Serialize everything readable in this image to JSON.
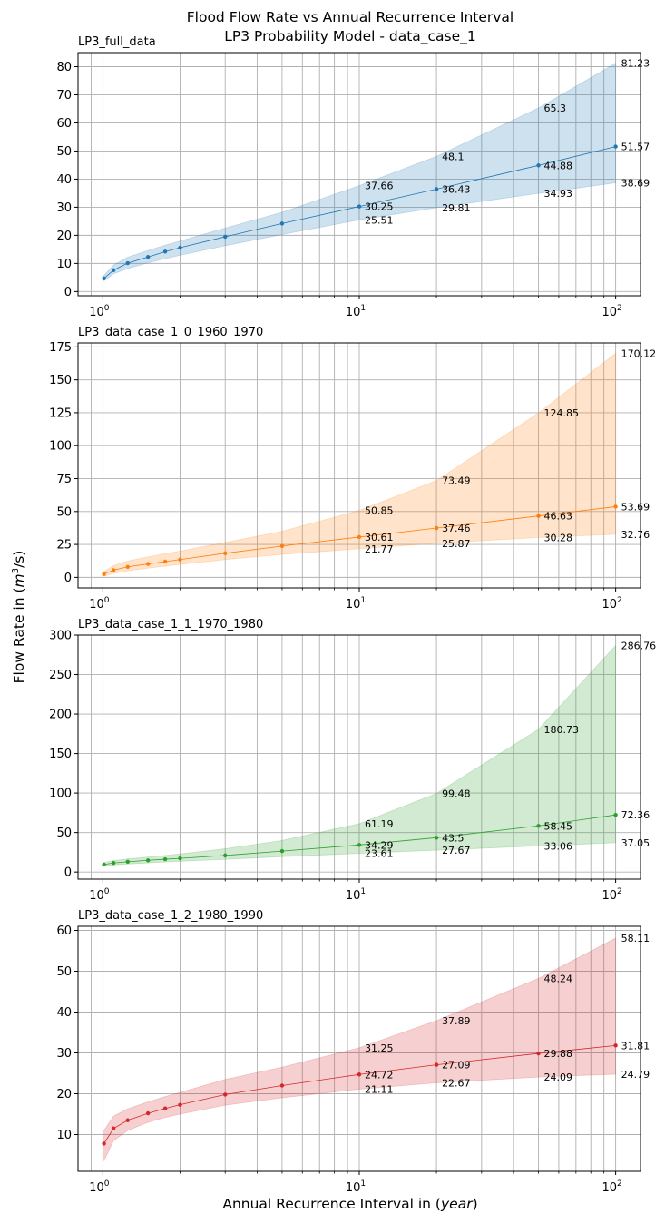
{
  "figure": {
    "title_line1": "Flood Flow Rate vs Annual Recurrence Interval",
    "title_line2": "LP3 Probability Model - data_case_1",
    "ylabel_prefix": "Flow Rate in (",
    "ylabel_unit": "m",
    "ylabel_sup": "3",
    "ylabel_suffix": "/s)",
    "xlabel_prefix": "Annual Recurrence Interval in (",
    "xlabel_unit": "year",
    "xlabel_suffix": ")"
  },
  "chart_data": [
    {
      "type": "line",
      "title": "LP3_full_data",
      "color": "#1f77b4",
      "xscale": "log",
      "xlim": [
        0.8,
        125
      ],
      "ylim": [
        -1.5,
        85
      ],
      "yticks": [
        0,
        10,
        20,
        30,
        40,
        50,
        60,
        70,
        80
      ],
      "xticks": [
        1,
        10,
        100
      ],
      "xtick_labels": [
        {
          "base": "10",
          "exp": "0"
        },
        {
          "base": "10",
          "exp": "1"
        },
        {
          "base": "10",
          "exp": "2"
        }
      ],
      "grid": true,
      "x": [
        1.01,
        1.1,
        1.25,
        1.5,
        1.75,
        2,
        3,
        5,
        10,
        20,
        50,
        100
      ],
      "series": [
        {
          "role": "median",
          "values": [
            4.7,
            7.6,
            10.1,
            12.3,
            14.2,
            15.6,
            19.5,
            24.2,
            30.25,
            36.43,
            44.88,
            51.57
          ]
        },
        {
          "role": "lower",
          "values": [
            3.8,
            6.3,
            8.2,
            10.2,
            11.7,
            12.9,
            16.3,
            20.3,
            25.51,
            29.81,
            34.93,
            38.69
          ]
        },
        {
          "role": "upper",
          "values": [
            5.8,
            9.4,
            12.2,
            14.6,
            16.5,
            18.0,
            22.6,
            28.2,
            37.66,
            48.1,
            65.3,
            81.23
          ]
        }
      ],
      "annotations": [
        {
          "x": 10,
          "y": 37.66,
          "text": "37.66"
        },
        {
          "x": 10,
          "y": 30.25,
          "text": "30.25"
        },
        {
          "x": 10,
          "y": 25.51,
          "text": "25.51"
        },
        {
          "x": 20,
          "y": 48.1,
          "text": "48.1"
        },
        {
          "x": 20,
          "y": 36.43,
          "text": "36.43"
        },
        {
          "x": 20,
          "y": 29.81,
          "text": "29.81"
        },
        {
          "x": 50,
          "y": 65.3,
          "text": "65.3"
        },
        {
          "x": 50,
          "y": 44.88,
          "text": "44.88"
        },
        {
          "x": 50,
          "y": 34.93,
          "text": "34.93"
        },
        {
          "x": 100,
          "y": 81.23,
          "text": "81.23"
        },
        {
          "x": 100,
          "y": 51.57,
          "text": "51.57"
        },
        {
          "x": 100,
          "y": 38.69,
          "text": "38.69"
        }
      ]
    },
    {
      "type": "line",
      "title": "LP3_data_case_1_0_1960_1970",
      "color": "#ff7f0e",
      "xscale": "log",
      "xlim": [
        0.8,
        125
      ],
      "ylim": [
        -8,
        178
      ],
      "yticks": [
        0,
        25,
        50,
        75,
        100,
        125,
        150,
        175
      ],
      "xticks": [
        1,
        10,
        100
      ],
      "xtick_labels": [
        {
          "base": "10",
          "exp": "0"
        },
        {
          "base": "10",
          "exp": "1"
        },
        {
          "base": "10",
          "exp": "2"
        }
      ],
      "grid": true,
      "x": [
        1.01,
        1.1,
        1.25,
        1.5,
        1.75,
        2,
        3,
        5,
        10,
        20,
        50,
        100
      ],
      "series": [
        {
          "role": "median",
          "values": [
            2.5,
            5.5,
            8.0,
            10.2,
            12.0,
            13.5,
            18.3,
            23.8,
            30.61,
            37.46,
            46.63,
            53.69
          ]
        },
        {
          "role": "lower",
          "values": [
            0.8,
            3.0,
            5.0,
            7.0,
            8.5,
            9.8,
            13.5,
            17.4,
            21.77,
            25.87,
            30.28,
            32.76
          ]
        },
        {
          "role": "upper",
          "values": [
            4.5,
            9.0,
            12.5,
            15.5,
            18.0,
            20.0,
            26.5,
            35.0,
            50.85,
            73.49,
            124.85,
            170.12
          ]
        }
      ],
      "annotations": [
        {
          "x": 10,
          "y": 50.85,
          "text": "50.85"
        },
        {
          "x": 10,
          "y": 30.61,
          "text": "30.61"
        },
        {
          "x": 10,
          "y": 21.77,
          "text": "21.77"
        },
        {
          "x": 20,
          "y": 73.49,
          "text": "73.49"
        },
        {
          "x": 20,
          "y": 37.46,
          "text": "37.46"
        },
        {
          "x": 20,
          "y": 25.87,
          "text": "25.87"
        },
        {
          "x": 50,
          "y": 124.85,
          "text": "124.85"
        },
        {
          "x": 50,
          "y": 46.63,
          "text": "46.63"
        },
        {
          "x": 50,
          "y": 30.28,
          "text": "30.28"
        },
        {
          "x": 100,
          "y": 170.12,
          "text": "170.12"
        },
        {
          "x": 100,
          "y": 53.69,
          "text": "53.69"
        },
        {
          "x": 100,
          "y": 32.76,
          "text": "32.76"
        }
      ]
    },
    {
      "type": "line",
      "title": "LP3_data_case_1_1_1970_1980",
      "color": "#2ca02c",
      "xscale": "log",
      "xlim": [
        0.8,
        125
      ],
      "ylim": [
        -9,
        300
      ],
      "yticks": [
        0,
        50,
        100,
        150,
        200,
        250,
        300
      ],
      "xticks": [
        1,
        10,
        100
      ],
      "xtick_labels": [
        {
          "base": "10",
          "exp": "0"
        },
        {
          "base": "10",
          "exp": "1"
        },
        {
          "base": "10",
          "exp": "2"
        }
      ],
      "grid": true,
      "x": [
        1.01,
        1.1,
        1.25,
        1.5,
        1.75,
        2,
        3,
        5,
        10,
        20,
        50,
        100
      ],
      "series": [
        {
          "role": "median",
          "values": [
            9.5,
            11.5,
            13.0,
            14.8,
            16.2,
            17.3,
            21.0,
            26.5,
            34.29,
            43.5,
            58.45,
            72.36
          ]
        },
        {
          "role": "lower",
          "values": [
            7.5,
            9.0,
            10.2,
            11.6,
            12.7,
            13.5,
            16.0,
            19.5,
            23.61,
            27.67,
            33.06,
            37.05
          ]
        },
        {
          "role": "upper",
          "values": [
            12.0,
            14.5,
            16.5,
            19.0,
            21.0,
            23.0,
            29.5,
            40.0,
            61.19,
            99.48,
            180.73,
            286.76
          ]
        }
      ],
      "annotations": [
        {
          "x": 10,
          "y": 61.19,
          "text": "61.19"
        },
        {
          "x": 10,
          "y": 34.29,
          "text": "34.29"
        },
        {
          "x": 10,
          "y": 23.61,
          "text": "23.61"
        },
        {
          "x": 20,
          "y": 99.48,
          "text": "99.48"
        },
        {
          "x": 20,
          "y": 43.5,
          "text": "43.5"
        },
        {
          "x": 20,
          "y": 27.67,
          "text": "27.67"
        },
        {
          "x": 50,
          "y": 180.73,
          "text": "180.73"
        },
        {
          "x": 50,
          "y": 58.45,
          "text": "58.45"
        },
        {
          "x": 50,
          "y": 33.06,
          "text": "33.06"
        },
        {
          "x": 100,
          "y": 286.76,
          "text": "286.76"
        },
        {
          "x": 100,
          "y": 72.36,
          "text": "72.36"
        },
        {
          "x": 100,
          "y": 37.05,
          "text": "37.05"
        }
      ]
    },
    {
      "type": "line",
      "title": "LP3_data_case_1_2_1980_1990",
      "color": "#d62728",
      "xscale": "log",
      "xlim": [
        0.8,
        125
      ],
      "ylim": [
        1,
        61
      ],
      "yticks": [
        10,
        20,
        30,
        40,
        50,
        60
      ],
      "xticks": [
        1,
        10,
        100
      ],
      "xtick_labels": [
        {
          "base": "10",
          "exp": "0"
        },
        {
          "base": "10",
          "exp": "1"
        },
        {
          "base": "10",
          "exp": "2"
        }
      ],
      "grid": true,
      "x": [
        1.01,
        1.1,
        1.25,
        1.5,
        1.75,
        2,
        3,
        5,
        10,
        20,
        50,
        100
      ],
      "series": [
        {
          "role": "median",
          "values": [
            7.8,
            11.5,
            13.5,
            15.2,
            16.4,
            17.3,
            19.8,
            22.0,
            24.72,
            27.09,
            29.88,
            31.81
          ]
        },
        {
          "role": "lower",
          "values": [
            3.5,
            8.5,
            11.0,
            13.0,
            14.2,
            15.0,
            17.2,
            19.0,
            21.11,
            22.67,
            24.09,
            24.79
          ]
        },
        {
          "role": "upper",
          "values": [
            11.0,
            14.5,
            16.3,
            18.0,
            19.3,
            20.3,
            23.5,
            26.5,
            31.25,
            37.89,
            48.24,
            58.11
          ]
        }
      ],
      "annotations": [
        {
          "x": 10,
          "y": 31.25,
          "text": "31.25"
        },
        {
          "x": 10,
          "y": 24.72,
          "text": "24.72"
        },
        {
          "x": 10,
          "y": 21.11,
          "text": "21.11"
        },
        {
          "x": 20,
          "y": 37.89,
          "text": "37.89"
        },
        {
          "x": 20,
          "y": 27.09,
          "text": "27.09"
        },
        {
          "x": 20,
          "y": 22.67,
          "text": "22.67"
        },
        {
          "x": 50,
          "y": 48.24,
          "text": "48.24"
        },
        {
          "x": 50,
          "y": 29.88,
          "text": "29.88"
        },
        {
          "x": 50,
          "y": 24.09,
          "text": "24.09"
        },
        {
          "x": 100,
          "y": 58.11,
          "text": "58.11"
        },
        {
          "x": 100,
          "y": 31.81,
          "text": "31.81"
        },
        {
          "x": 100,
          "y": 24.79,
          "text": "24.79"
        }
      ]
    }
  ]
}
